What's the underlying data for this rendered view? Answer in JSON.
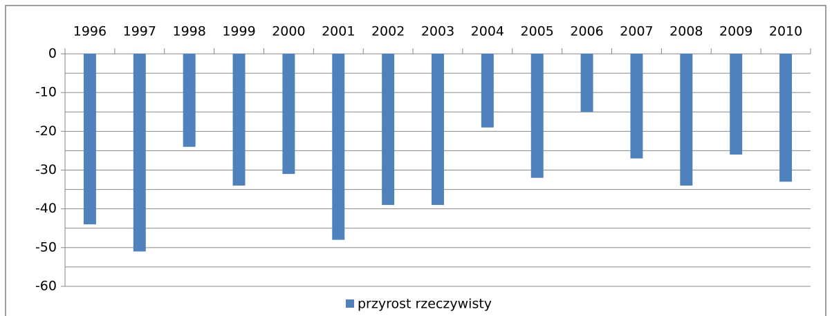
{
  "chart_data": {
    "type": "bar",
    "categories": [
      "1996",
      "1997",
      "1998",
      "1999",
      "2000",
      "2001",
      "2002",
      "2003",
      "2004",
      "2005",
      "2006",
      "2007",
      "2008",
      "2009",
      "2010"
    ],
    "series": [
      {
        "name": "przyrost rzeczywisty",
        "color": "#4f81bd",
        "values": [
          -44,
          -51,
          -24,
          -34,
          -31,
          -48,
          -39,
          -39,
          -19,
          -32,
          -15,
          -27,
          -34,
          -26,
          -33
        ]
      }
    ],
    "ylim": [
      -60,
      0
    ],
    "yticks": [
      0,
      -10,
      -20,
      -30,
      -40,
      -50,
      -60
    ],
    "y_minor_ticks": [
      -5,
      -15,
      -25,
      -35,
      -45,
      -55
    ],
    "grid": true,
    "legend": "bottom"
  }
}
